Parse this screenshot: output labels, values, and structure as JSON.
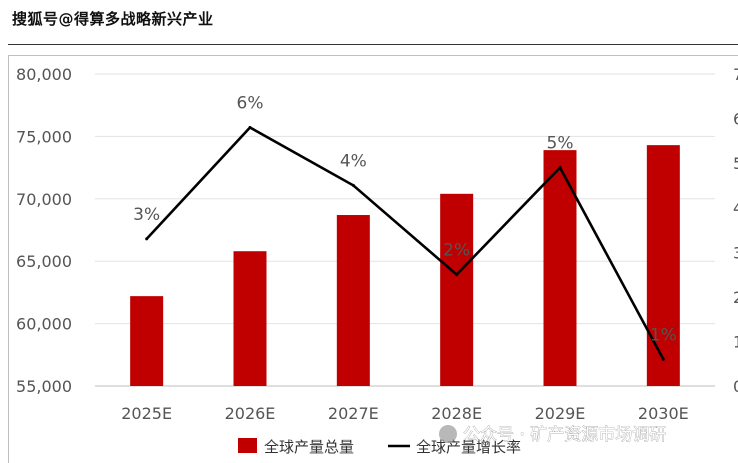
{
  "watermark_top": "搜狐号@得算多战略新兴产业",
  "watermark_bottom": "公众号 · 矿产资源市场调研",
  "chart_data": {
    "type": "bar+line",
    "categories": [
      "2025E",
      "2026E",
      "2027E",
      "2028E",
      "2029E",
      "2030E"
    ],
    "series": [
      {
        "name": "全球产量总量",
        "type": "bar",
        "axis": "left",
        "color": "#c00000",
        "values": [
          62200,
          65800,
          68700,
          70400,
          73900,
          74300
        ]
      },
      {
        "name": "全球产量增长率",
        "type": "line",
        "axis": "right",
        "color": "#000000",
        "values": [
          3.3,
          5.8,
          4.5,
          2.5,
          4.9,
          0.6
        ],
        "data_labels": [
          "3%",
          "6%",
          "4%",
          "2%",
          "5%",
          "1%"
        ]
      }
    ],
    "y_left": {
      "ylim": [
        55000,
        80000
      ],
      "ticks": [
        "55,000",
        "60,000",
        "65,000",
        "70,000",
        "75,000",
        "80,000"
      ],
      "tick_values": [
        55000,
        60000,
        65000,
        70000,
        75000,
        80000
      ]
    },
    "y_right": {
      "ylim": [
        0,
        7
      ],
      "ticks": [
        "0",
        "1",
        "2",
        "3",
        "4",
        "5",
        "6",
        "7"
      ]
    },
    "grid": true,
    "legend": "bottom"
  }
}
